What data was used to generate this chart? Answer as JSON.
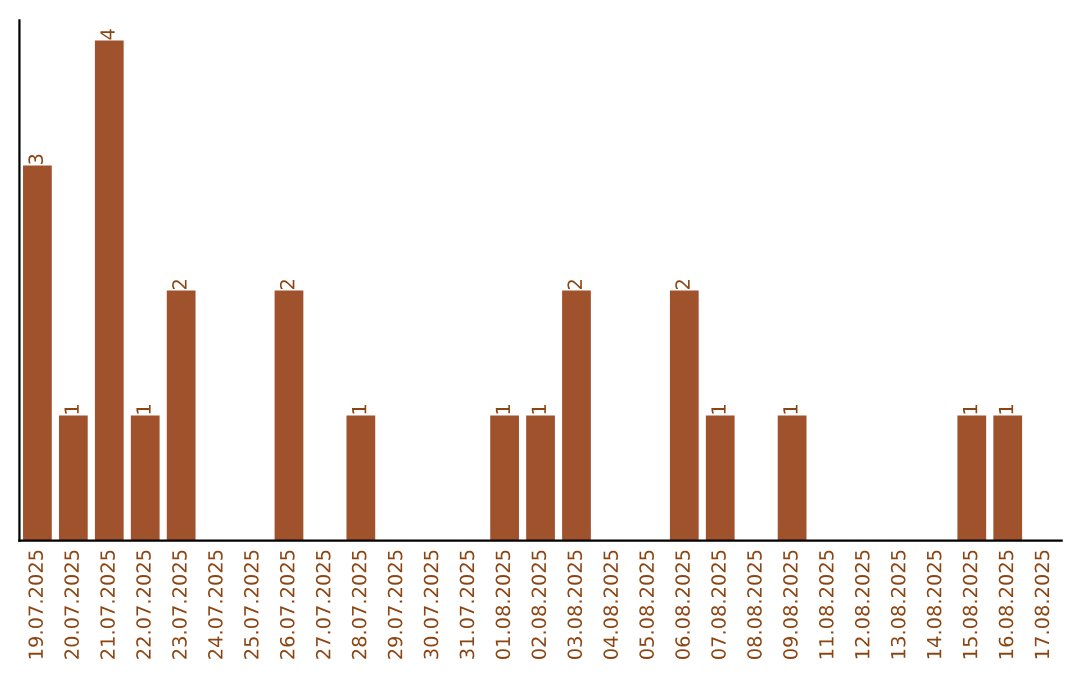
{
  "chart_data": {
    "type": "bar",
    "categories": [
      "19.07.2025",
      "20.07.2025",
      "21.07.2025",
      "22.07.2025",
      "23.07.2025",
      "24.07.2025",
      "25.07.2025",
      "26.07.2025",
      "27.07.2025",
      "28.07.2025",
      "29.07.2025",
      "30.07.2025",
      "31.07.2025",
      "01.08.2025",
      "02.08.2025",
      "03.08.2025",
      "04.08.2025",
      "05.08.2025",
      "06.08.2025",
      "07.08.2025",
      "08.08.2025",
      "09.08.2025",
      "11.08.2025",
      "12.08.2025",
      "13.08.2025",
      "14.08.2025",
      "15.08.2025",
      "16.08.2025",
      "17.08.2025"
    ],
    "values": [
      3,
      1,
      4,
      1,
      2,
      0,
      0,
      2,
      0,
      1,
      0,
      0,
      0,
      1,
      1,
      2,
      0,
      0,
      2,
      1,
      0,
      1,
      0,
      0,
      0,
      0,
      1,
      1,
      0
    ],
    "value_labels": [
      "3",
      "1",
      "4",
      "1",
      "2",
      null,
      null,
      "2",
      null,
      "1",
      null,
      null,
      null,
      "1",
      "1",
      "2",
      null,
      null,
      "2",
      "1",
      null,
      "1",
      null,
      null,
      null,
      null,
      "1",
      "1",
      null
    ],
    "color": "#a0522d",
    "grid": false,
    "legend": false
  }
}
